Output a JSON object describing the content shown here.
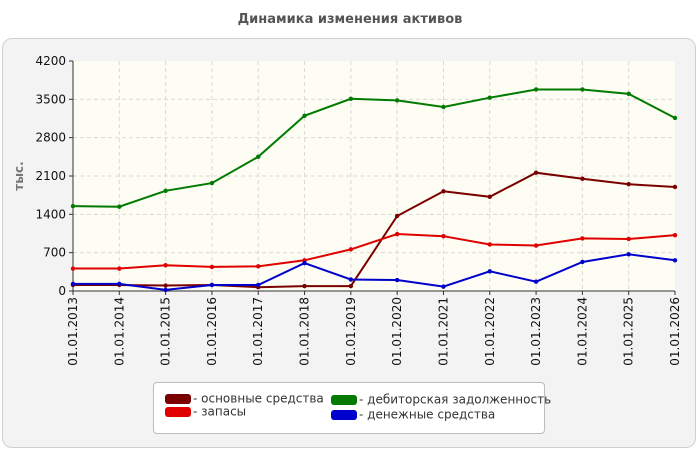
{
  "chart_data": {
    "type": "line",
    "title": "Динамика изменения активов",
    "xlabel": "",
    "ylabel": "тыс.",
    "categories": [
      "01.01.2013",
      "01.01.2014",
      "01.01.2015",
      "01.01.2016",
      "01.01.2017",
      "01.01.2018",
      "01.01.2019",
      "01.01.2020",
      "01.01.2021",
      "01.01.2022",
      "01.01.2023",
      "01.01.2024",
      "01.01.2025",
      "01.01.2026"
    ],
    "yticks": [
      "4200",
      "3500",
      "2800",
      "2100",
      "1400",
      "700",
      "0"
    ],
    "ylim": [
      0,
      4200
    ],
    "grid": true,
    "legend_position": "bottom",
    "series": [
      {
        "name": "- основные средства",
        "color": "#7a0000",
        "values": [
          110,
          110,
          100,
          110,
          70,
          90,
          90,
          1370,
          1820,
          1720,
          2160,
          2050,
          1950,
          1900
        ]
      },
      {
        "name": "- запасы",
        "color": "#e00000",
        "values": [
          410,
          410,
          470,
          440,
          450,
          560,
          760,
          1040,
          1000,
          850,
          830,
          960,
          950,
          1020
        ]
      },
      {
        "name": "- дебиторская задолженность",
        "color": "#007a00",
        "values": [
          1550,
          1540,
          1830,
          1970,
          2450,
          3200,
          3510,
          3480,
          3360,
          3530,
          3680,
          3680,
          3600,
          3160
        ]
      },
      {
        "name": "- денежные средства",
        "color": "#0000cc",
        "values": [
          130,
          130,
          20,
          110,
          110,
          510,
          210,
          200,
          80,
          360,
          170,
          530,
          670,
          560
        ]
      }
    ]
  }
}
